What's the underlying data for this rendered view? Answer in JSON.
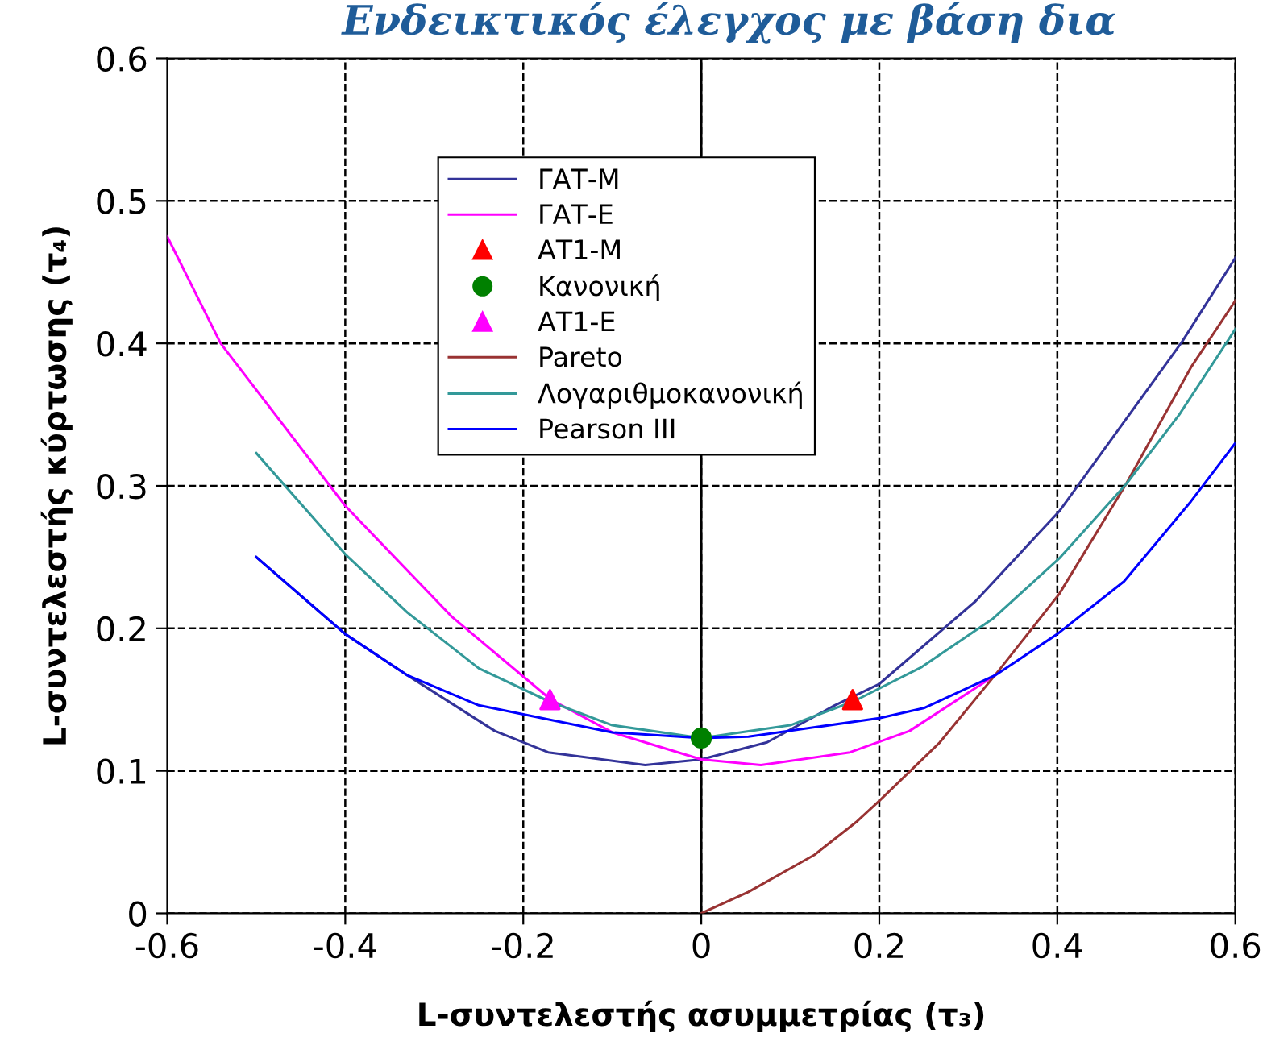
{
  "chart_data": {
    "type": "line",
    "title": "Ενδεικτικός έλεγχος με βάση δια",
    "xlabel": "L-συντελεστής ασυμμετρίας (τ₃)",
    "ylabel": "L-συντελεστής κύρτωσης (τ₄)",
    "xlim": [
      -0.6,
      0.6
    ],
    "xticks": [
      -0.6,
      -0.4,
      -0.2,
      0,
      0.2,
      0.4,
      0.6
    ],
    "ylim": [
      0,
      0.6
    ],
    "yticks": [
      0,
      0.1,
      0.2,
      0.3,
      0.4,
      0.5,
      0.6
    ],
    "grid": true,
    "legend": "top",
    "ref_lines": [
      {
        "axis": "x",
        "value": 0,
        "color": "#000000",
        "line_style": "solid"
      }
    ],
    "series": [
      {
        "name": "ΓΑΤ-Μ",
        "color": "#333399",
        "x": [
          -0.5,
          -0.4,
          -0.33,
          -0.232,
          -0.172,
          -0.063,
          0,
          0.074,
          0.15,
          0.2,
          0.308,
          0.402,
          0.54,
          0.6
        ],
        "values": [
          0.25,
          0.196,
          0.167,
          0.128,
          0.113,
          0.104,
          0.108,
          0.12,
          0.146,
          0.161,
          0.219,
          0.282,
          0.401,
          0.46
        ]
      },
      {
        "name": "ΓΑΤ-Ε",
        "color": "#ff00ff",
        "x": [
          -0.6,
          -0.54,
          -0.4,
          -0.28,
          -0.169,
          -0.1,
          0,
          0.067,
          0.167,
          0.234,
          0.33
        ],
        "values": [
          0.475,
          0.4,
          0.286,
          0.208,
          0.15,
          0.127,
          0.108,
          0.104,
          0.113,
          0.128,
          0.167
        ]
      },
      {
        "name": "ΑΤ1-Μ",
        "color": "#ff0000",
        "type": "scatter",
        "marker": "triangle",
        "x": [
          0.17
        ],
        "values": [
          0.15
        ]
      },
      {
        "name": "Κανονική",
        "color": "#008000",
        "type": "scatter",
        "marker": "circle",
        "x": [
          0
        ],
        "values": [
          0.123
        ]
      },
      {
        "name": "ΑΤ1-Ε",
        "color": "#ff00ff",
        "type": "scatter",
        "marker": "triangle",
        "x": [
          -0.17
        ],
        "values": [
          0.15
        ]
      },
      {
        "name": "Pareto",
        "color": "#993333",
        "x": [
          0,
          0.053,
          0.127,
          0.174,
          0.2,
          0.268,
          0.335,
          0.402,
          0.477,
          0.55,
          0.6
        ],
        "values": [
          0,
          0.015,
          0.041,
          0.064,
          0.079,
          0.12,
          0.171,
          0.224,
          0.301,
          0.383,
          0.43
        ]
      },
      {
        "name": "Λογαριθμοκανονική",
        "color": "#339999",
        "x": [
          -0.5,
          -0.4,
          -0.33,
          -0.25,
          -0.172,
          -0.1,
          0,
          0.1,
          0.172,
          0.248,
          0.328,
          0.402,
          0.477,
          0.537,
          0.6
        ],
        "values": [
          0.323,
          0.252,
          0.211,
          0.172,
          0.149,
          0.132,
          0.123,
          0.132,
          0.149,
          0.173,
          0.207,
          0.249,
          0.301,
          0.35,
          0.41
        ]
      },
      {
        "name": "Pearson III",
        "color": "#0000ff",
        "x": [
          -0.5,
          -0.4,
          -0.33,
          -0.25,
          -0.1,
          0,
          0.053,
          0.2,
          0.25,
          0.33,
          0.4,
          0.475,
          0.55,
          0.6
        ],
        "values": [
          0.25,
          0.196,
          0.167,
          0.146,
          0.127,
          0.123,
          0.124,
          0.137,
          0.144,
          0.167,
          0.196,
          0.233,
          0.289,
          0.33
        ]
      }
    ]
  }
}
